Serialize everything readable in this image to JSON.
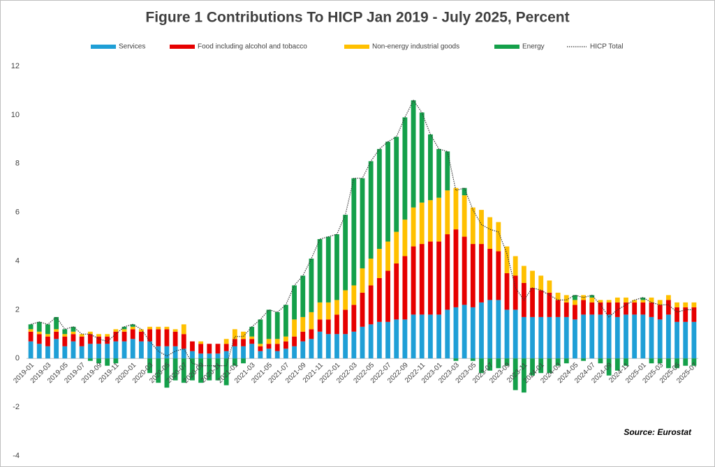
{
  "chart_data": {
    "type": "bar",
    "stacked": true,
    "title": "Figure 1   Contributions To HICP Jan 2019 - July 2025, Percent",
    "source": "Source: Eurostat",
    "categories": [
      "2019-01",
      null,
      "2019-03",
      null,
      "2019-05",
      null,
      "2019-07",
      null,
      "2019-09",
      null,
      "2019-11",
      null,
      "2020-01",
      null,
      "2020-03",
      null,
      "2020-05",
      null,
      "2020-07",
      null,
      "2020-09",
      null,
      "2020-11",
      null,
      "2021-01",
      null,
      "2021-03",
      null,
      "2021-05",
      null,
      "2021-07",
      null,
      "2021-09",
      null,
      "2021-11",
      null,
      "2022-01",
      null,
      "2022-03",
      null,
      "2022-05",
      null,
      "2022-07",
      null,
      "2022-09",
      null,
      "2022-11",
      null,
      "2023-01",
      null,
      "2023-03",
      null,
      "2023-05",
      null,
      "2023-07",
      null,
      "2023-09",
      null,
      "2023-11",
      null,
      "2024-01",
      null,
      "2024-03",
      null,
      "2024-05",
      null,
      "2024-07",
      null,
      "2024-09",
      null,
      "2024-11",
      null,
      "2025-01",
      null,
      "2025-03",
      null,
      "2025-05",
      null,
      "2025-07"
    ],
    "series": [
      {
        "name": "Services",
        "type": "bar",
        "color": "#1f9fd6",
        "values": [
          0.7,
          0.6,
          0.5,
          0.8,
          0.5,
          0.7,
          0.5,
          0.6,
          0.6,
          0.6,
          0.7,
          0.7,
          0.8,
          0.7,
          0.7,
          0.5,
          0.5,
          0.5,
          0.4,
          0.3,
          0.2,
          0.2,
          0.2,
          0.3,
          0.5,
          0.5,
          0.6,
          0.3,
          0.4,
          0.3,
          0.4,
          0.5,
          0.7,
          0.8,
          1.1,
          1.0,
          1.0,
          1.0,
          1.1,
          1.3,
          1.4,
          1.5,
          1.5,
          1.6,
          1.6,
          1.8,
          1.8,
          1.8,
          1.8,
          2.0,
          2.1,
          2.2,
          2.1,
          2.3,
          2.4,
          2.4,
          2.0,
          2.0,
          1.7,
          1.7,
          1.7,
          1.7,
          1.7,
          1.7,
          1.6,
          1.8,
          1.8,
          1.8,
          1.8,
          1.7,
          1.8,
          1.8,
          1.8,
          1.7,
          1.6,
          1.8,
          1.5,
          1.5,
          1.5
        ]
      },
      {
        "name": "Food including alcohol and tobacco",
        "type": "bar",
        "color": "#e60000",
        "values": [
          0.4,
          0.4,
          0.4,
          0.3,
          0.4,
          0.3,
          0.4,
          0.4,
          0.3,
          0.3,
          0.4,
          0.4,
          0.4,
          0.4,
          0.5,
          0.7,
          0.7,
          0.6,
          0.6,
          0.4,
          0.4,
          0.4,
          0.4,
          0.3,
          0.3,
          0.3,
          0.2,
          0.2,
          0.2,
          0.3,
          0.3,
          0.4,
          0.4,
          0.4,
          0.5,
          0.6,
          0.8,
          1.0,
          1.1,
          1.4,
          1.6,
          1.8,
          2.1,
          2.3,
          2.6,
          2.8,
          2.9,
          3.0,
          3.0,
          3.1,
          3.2,
          2.8,
          2.6,
          2.4,
          2.1,
          2.0,
          1.5,
          1.4,
          1.4,
          1.2,
          1.1,
          1.0,
          0.7,
          0.6,
          0.6,
          0.6,
          0.5,
          0.5,
          0.5,
          0.6,
          0.5,
          0.5,
          0.5,
          0.6,
          0.6,
          0.6,
          0.6,
          0.6,
          0.6
        ]
      },
      {
        "name": "Non-energy industrial goods",
        "type": "bar",
        "color": "#ffc000",
        "values": [
          0.1,
          0.1,
          0.1,
          0.1,
          0.1,
          0.1,
          0.1,
          0.1,
          0.1,
          0.1,
          0.1,
          0.1,
          0.1,
          0.1,
          0.1,
          0.1,
          0.1,
          0.1,
          0.4,
          0.0,
          0.1,
          0.0,
          0.0,
          0.2,
          0.4,
          0.3,
          0.1,
          0.1,
          0.2,
          0.2,
          0.2,
          0.7,
          0.6,
          0.7,
          0.7,
          0.7,
          0.6,
          0.8,
          0.8,
          1.0,
          1.1,
          1.2,
          1.2,
          1.3,
          1.5,
          1.6,
          1.7,
          1.7,
          1.8,
          1.8,
          1.7,
          1.7,
          1.5,
          1.4,
          1.3,
          1.2,
          1.1,
          0.8,
          0.7,
          0.7,
          0.6,
          0.5,
          0.3,
          0.3,
          0.2,
          0.2,
          0.2,
          0.1,
          0.1,
          0.2,
          0.2,
          0.1,
          0.1,
          0.2,
          0.2,
          0.2,
          0.2,
          0.2,
          0.2
        ]
      },
      {
        "name": "Energy",
        "type": "bar",
        "color": "#14a04a",
        "values": [
          0.2,
          0.4,
          0.4,
          0.5,
          0.2,
          0.2,
          0.0,
          -0.1,
          -0.2,
          -0.3,
          -0.2,
          0.1,
          0.1,
          0.0,
          -0.6,
          -1.0,
          -1.2,
          -0.9,
          -1.0,
          -0.9,
          -1.0,
          -0.9,
          -0.9,
          -1.1,
          -0.3,
          -0.2,
          0.4,
          1.0,
          1.2,
          1.1,
          1.3,
          1.4,
          1.7,
          2.2,
          2.6,
          2.7,
          2.7,
          3.1,
          4.4,
          3.7,
          4.0,
          4.1,
          4.1,
          3.9,
          4.2,
          4.4,
          3.7,
          2.7,
          2.0,
          1.6,
          -0.1,
          0.3,
          -0.1,
          -0.6,
          -0.5,
          -0.4,
          -0.3,
          -1.3,
          -1.4,
          -0.7,
          -0.6,
          -0.6,
          -0.3,
          -0.2,
          0.2,
          -0.1,
          0.1,
          -0.2,
          -0.7,
          -0.5,
          -0.3,
          0.0,
          0.1,
          -0.2,
          -0.2,
          -0.4,
          -0.4,
          -0.3,
          -0.3
        ]
      },
      {
        "name": "HICP Total",
        "type": "line",
        "color": "#333333",
        "values": [
          1.4,
          1.5,
          1.4,
          1.7,
          1.2,
          1.3,
          1.0,
          1.0,
          0.8,
          0.7,
          1.0,
          1.3,
          1.4,
          1.2,
          0.7,
          0.3,
          0.1,
          0.3,
          0.4,
          -0.2,
          -0.3,
          -0.3,
          -0.3,
          -0.3,
          0.9,
          0.9,
          1.3,
          1.6,
          2.0,
          1.9,
          2.2,
          3.0,
          3.4,
          4.1,
          4.9,
          5.0,
          5.1,
          5.9,
          7.4,
          7.4,
          8.1,
          8.6,
          8.9,
          9.1,
          9.9,
          10.6,
          10.1,
          9.2,
          8.6,
          8.5,
          6.9,
          7.0,
          6.1,
          5.5,
          5.3,
          5.2,
          4.3,
          2.9,
          2.4,
          2.9,
          2.8,
          2.6,
          2.4,
          2.4,
          2.6,
          2.5,
          2.6,
          2.2,
          1.7,
          2.0,
          2.2,
          2.4,
          2.5,
          2.3,
          2.2,
          2.2,
          1.9,
          2.0,
          2.0
        ]
      }
    ],
    "ylim": [
      -4,
      12
    ],
    "yticks": [
      -4,
      -2,
      0,
      2,
      4,
      6,
      8,
      10,
      12
    ],
    "legend": "top"
  }
}
